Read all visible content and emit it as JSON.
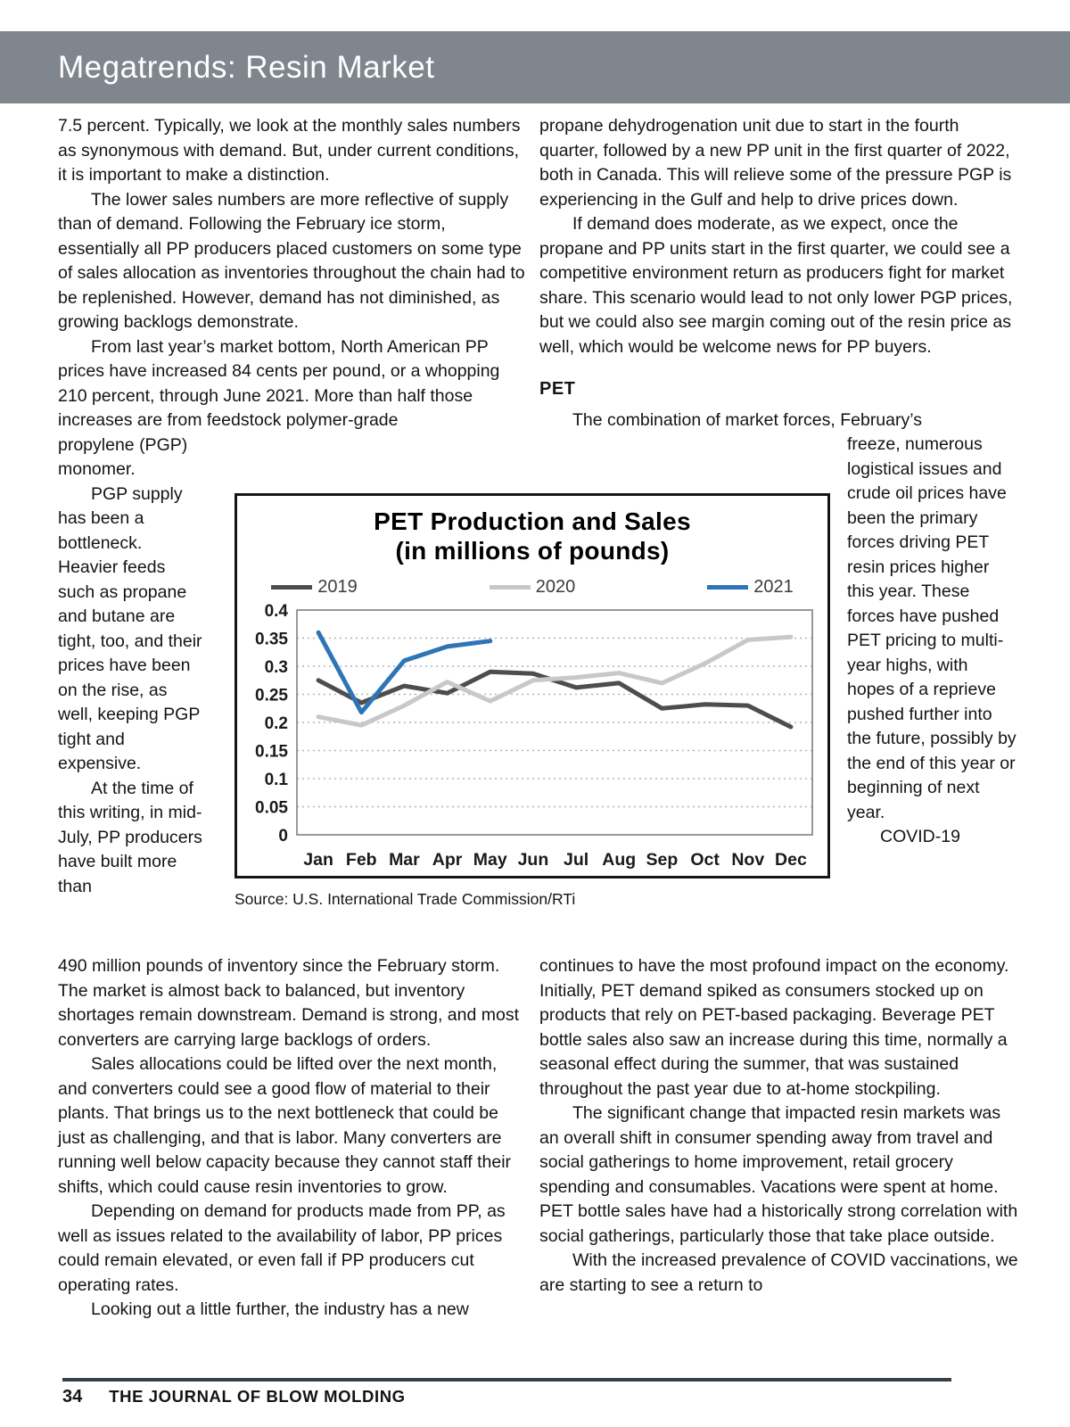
{
  "header": {
    "title": "Megatrends: Resin Market"
  },
  "left_column": {
    "p1": "7.5 percent. Typically, we look at the monthly sales numbers as synonymous with demand. But, under current conditions, it is important to make a distinction.",
    "p2": "The lower sales numbers are more reflective of supply than of demand. Following the February ice storm, essentially all PP producers placed customers on some type of sales allocation as inventories throughout the chain had to be replenished. However, demand has not diminished, as growing backlogs demonstrate.",
    "p3_wide": "From last year’s market bottom, North American PP prices have increased 84 cents per pound, or a whopping 210 percent, through June 2021. More than half those increases are from feedstock polymer-grade",
    "p3_narrow": "propylene (PGP) monomer.",
    "p4": "PGP supply has been a bottleneck. Heavier feeds such as propane and butane are tight, too, and their prices have been on the rise, as well, keeping PGP tight and expensive.",
    "p5_narrow": "At the time of this writing, in mid-July, PP producers have built more than",
    "p5_wide": "490 million pounds of inventory since the February storm. The market is almost back to balanced, but inventory shortages remain downstream. Demand is strong, and most converters are carrying large backlogs of orders.",
    "p6": "Sales allocations could be lifted over the next month, and converters could see a good flow of material to their plants. That brings us to the next bottleneck that could be just as challenging, and that is labor. Many converters are running well below capacity because they cannot staff their shifts, which could cause resin inventories to grow.",
    "p7": "Depending on demand for products made from PP, as well as issues related to the availability of labor, PP prices could remain elevated, or even fall if PP producers cut operating rates.",
    "p8": "Looking out a little further, the industry has a new"
  },
  "right_column": {
    "p1": "propane dehydrogenation unit due to start in the fourth quarter, followed by a new PP unit in the first quarter of 2022, both in Canada. This will relieve some of the pressure PGP is experiencing in the Gulf and help to drive prices down.",
    "p2": "If demand does moderate, as we expect, once the propane and PP units start in the first quarter, we could see a competitive environment return as producers fight for market share.  This scenario would lead to not only lower PGP prices, but we could also see margin coming out of the resin price as well, which would be welcome news for PP buyers.",
    "pet_heading": "PET",
    "p3_wide": "The combination of market forces, February’s",
    "p3_narrow": "freeze, numerous logistical issues and crude oil prices have been the primary forces driving PET resin prices higher this year. These forces have pushed PET pricing to multi-year highs, with hopes of a reprieve pushed further into the future, possibly by the end of this year or beginning of next year.",
    "p4_narrow": "COVID-19",
    "p4_wide": "continues to have the most profound impact on the economy. Initially, PET demand spiked as consumers stocked up on products that rely on PET-based packaging. Beverage PET bottle sales also saw an increase during this time, normally a seasonal effect during the summer, that was sustained throughout the past year due to at-home stockpiling.",
    "p5": "The significant change that impacted resin markets was an overall shift in consumer spending away from travel and social gatherings to home improvement, retail grocery spending and consumables. Vacations were spent at home. PET bottle sales have had a historically strong correlation with social gatherings, particularly those that take place outside.",
    "p6": "With the increased prevalence of COVID vaccinations, we are starting to see a return to"
  },
  "chart": {
    "source": "Source: U.S. International Trade Commission/RTi"
  },
  "chart_data": {
    "type": "line",
    "title": "PET Production and Sales",
    "subtitle": "(in millions of pounds)",
    "categories": [
      "Jan",
      "Feb",
      "Mar",
      "Apr",
      "May",
      "Jun",
      "Jul",
      "Aug",
      "Sep",
      "Oct",
      "Nov",
      "Dec"
    ],
    "series": [
      {
        "name": "2019",
        "color": "#4d4d4d",
        "values": [
          0.275,
          0.235,
          0.265,
          0.252,
          0.29,
          0.287,
          0.262,
          0.27,
          0.225,
          0.232,
          0.23,
          0.192
        ]
      },
      {
        "name": "2020",
        "color": "#c8c8c8",
        "values": [
          0.21,
          0.195,
          0.23,
          0.272,
          0.238,
          0.275,
          0.28,
          0.288,
          0.27,
          0.305,
          0.347,
          0.352
        ]
      },
      {
        "name": "2021",
        "color": "#2e75b6",
        "values": [
          0.36,
          0.218,
          0.31,
          0.335,
          0.345
        ]
      }
    ],
    "ylim": [
      0,
      0.4
    ],
    "ytick_step": 0.05,
    "grid": true,
    "legend_position": "top"
  },
  "footer": {
    "page_number": "34",
    "journal_name": "THE JOURNAL OF BLOW MOLDING"
  }
}
